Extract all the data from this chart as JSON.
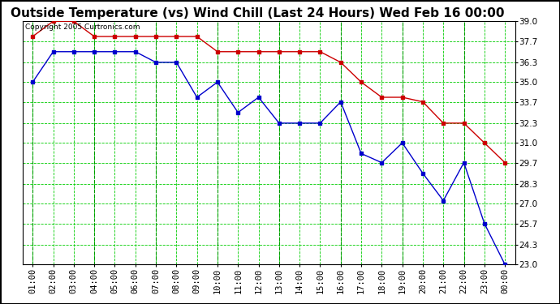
{
  "title": "Outside Temperature (vs) Wind Chill (Last 24 Hours) Wed Feb 16 00:00",
  "copyright": "Copyright 2005 Curtronics.com",
  "x_labels": [
    "01:00",
    "02:00",
    "03:00",
    "04:00",
    "05:00",
    "06:00",
    "07:00",
    "08:00",
    "09:00",
    "10:00",
    "11:00",
    "12:00",
    "13:00",
    "14:00",
    "15:00",
    "16:00",
    "17:00",
    "18:00",
    "19:00",
    "20:00",
    "21:00",
    "22:00",
    "23:00",
    "00:00"
  ],
  "red_data": [
    38.0,
    39.0,
    39.0,
    38.0,
    38.0,
    38.0,
    38.0,
    38.0,
    38.0,
    37.0,
    37.0,
    37.0,
    37.0,
    37.0,
    37.0,
    36.3,
    35.0,
    34.0,
    34.0,
    33.7,
    32.3,
    32.3,
    31.0,
    29.7
  ],
  "blue_data": [
    35.0,
    37.0,
    37.0,
    37.0,
    37.0,
    37.0,
    36.3,
    36.3,
    34.0,
    35.0,
    33.0,
    34.0,
    32.3,
    32.3,
    32.3,
    33.7,
    30.3,
    29.7,
    31.0,
    29.0,
    27.2,
    29.7,
    25.7,
    23.0
  ],
  "red_color": "#cc0000",
  "blue_color": "#0000cc",
  "bg_color": "#ffffff",
  "grid_color": "#00cc00",
  "grid_color_dark": "#009900",
  "ylim": [
    23.0,
    39.0
  ],
  "yticks": [
    23.0,
    24.3,
    25.7,
    27.0,
    28.3,
    29.7,
    31.0,
    32.3,
    33.7,
    35.0,
    36.3,
    37.7,
    39.0
  ],
  "title_fontsize": 11,
  "copyright_fontsize": 6.5,
  "tick_fontsize": 7.5
}
